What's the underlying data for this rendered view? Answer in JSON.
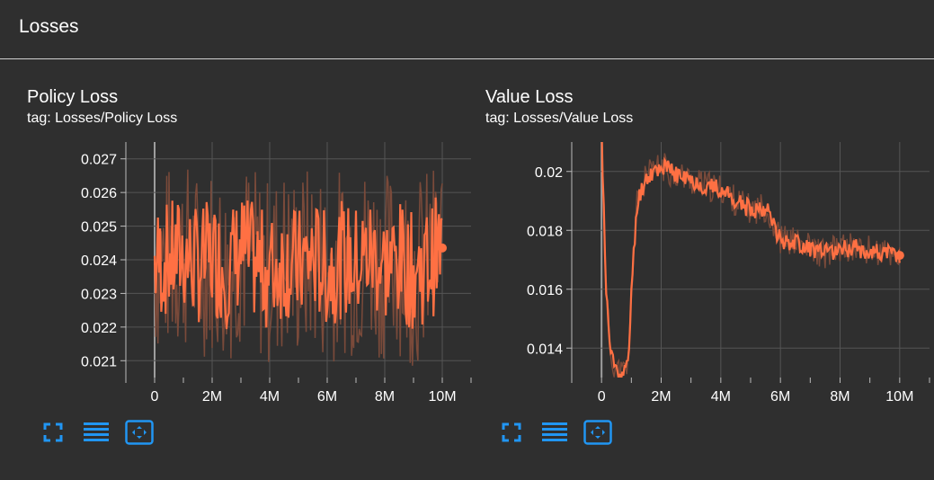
{
  "header": {
    "title": "Losses"
  },
  "cards": [
    {
      "title": "Policy Loss",
      "tag": "tag: Losses/Policy Loss"
    },
    {
      "title": "Value Loss",
      "tag": "tag: Losses/Value Loss"
    }
  ],
  "toolbar_icons": [
    "fullscreen-icon",
    "data-table-icon",
    "fit-domain-icon"
  ],
  "colors": {
    "background": "#2f2f2f",
    "series": "#ff7043",
    "series_smoothed_bg": "#7a4a3a",
    "grid": "#555555"
  },
  "chart_data": [
    {
      "type": "line",
      "title": "Policy Loss",
      "xlabel": "",
      "ylabel": "",
      "x_tick_labels": [
        "0",
        "2M",
        "4M",
        "6M",
        "8M",
        "10M"
      ],
      "x_ticks": [
        0,
        2000000,
        4000000,
        6000000,
        8000000,
        10000000
      ],
      "y_tick_labels": [
        "0.021",
        "0.022",
        "0.023",
        "0.024",
        "0.025",
        "0.026",
        "0.027"
      ],
      "y_ticks": [
        0.021,
        0.022,
        0.023,
        0.024,
        0.025,
        0.026,
        0.027
      ],
      "xlim": [
        -1000000,
        11000000
      ],
      "ylim": [
        0.0205,
        0.0275
      ],
      "grid": true,
      "series": [
        {
          "x": [
            0,
            500000,
            1000000,
            1500000,
            2000000,
            2500000,
            3000000,
            3500000,
            4000000,
            4500000,
            5000000,
            5500000,
            6000000,
            6500000,
            7000000,
            7500000,
            8000000,
            8500000,
            9000000,
            9500000,
            10000000
          ],
          "values": [
            0.0239,
            0.024,
            0.0242,
            0.0238,
            0.0241,
            0.0237,
            0.0243,
            0.0239,
            0.0236,
            0.024,
            0.0238,
            0.0241,
            0.0237,
            0.024,
            0.0239,
            0.0242,
            0.0238,
            0.024,
            0.0236,
            0.0239,
            0.02435
          ]
        }
      ]
    },
    {
      "type": "line",
      "title": "Value Loss",
      "xlabel": "",
      "ylabel": "",
      "x_tick_labels": [
        "0",
        "2M",
        "4M",
        "6M",
        "8M",
        "10M"
      ],
      "x_ticks": [
        0,
        2000000,
        4000000,
        6000000,
        8000000,
        10000000
      ],
      "y_tick_labels": [
        "0.014",
        "0.016",
        "0.018",
        "0.02"
      ],
      "y_ticks": [
        0.014,
        0.016,
        0.018,
        0.02
      ],
      "xlim": [
        -1000000,
        11000000
      ],
      "ylim": [
        0.013,
        0.021
      ],
      "grid": true,
      "series": [
        {
          "x": [
            0,
            150000,
            300000,
            500000,
            700000,
            900000,
            1000000,
            1200000,
            1500000,
            2000000,
            2500000,
            3000000,
            3500000,
            4000000,
            4500000,
            5000000,
            5500000,
            6000000,
            6500000,
            7000000,
            7500000,
            8000000,
            8500000,
            9000000,
            9500000,
            10000000
          ],
          "values": [
            0.0215,
            0.016,
            0.0138,
            0.0133,
            0.0131,
            0.0134,
            0.016,
            0.019,
            0.0198,
            0.0202,
            0.0199,
            0.0197,
            0.0195,
            0.0194,
            0.019,
            0.0187,
            0.0188,
            0.0177,
            0.0176,
            0.0174,
            0.0172,
            0.0174,
            0.0174,
            0.0173,
            0.0172,
            0.01715
          ]
        }
      ]
    }
  ]
}
